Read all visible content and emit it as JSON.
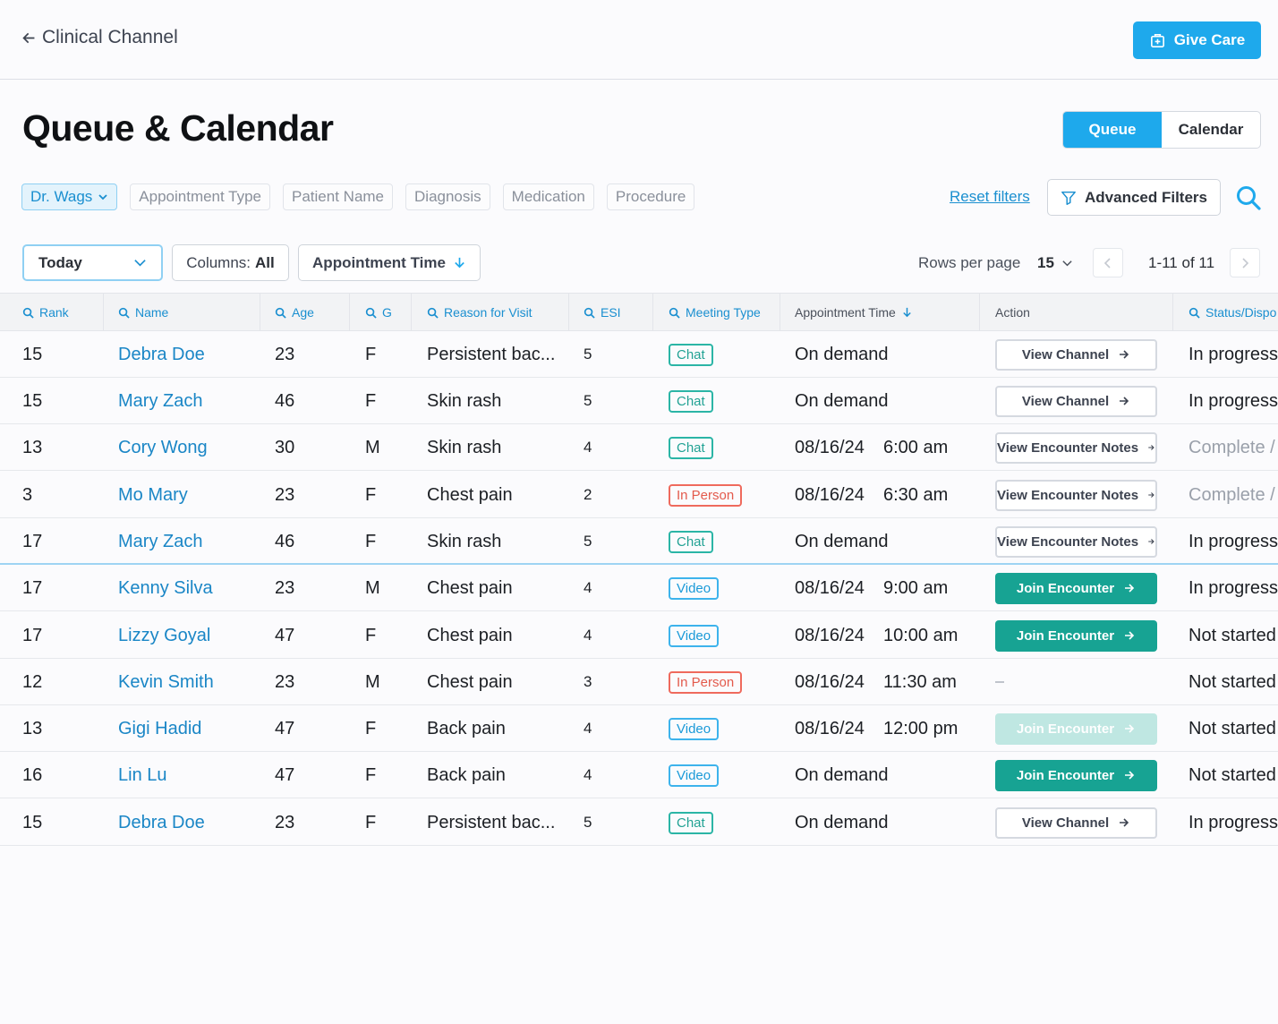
{
  "header": {
    "back_label": "Clinical Channel",
    "give_care_label": "Give Care"
  },
  "page": {
    "title": "Queue & Calendar",
    "view_toggle": [
      "Queue",
      "Calendar"
    ],
    "active_view": "Queue"
  },
  "filters": {
    "chips": [
      "Dr. Wags",
      "Appointment Type",
      "Patient Name",
      "Diagnosis",
      "Medication",
      "Procedure"
    ],
    "reset_label": "Reset filters",
    "advanced_label": "Advanced Filters"
  },
  "controls": {
    "date_range": "Today",
    "columns_label": "Columns:",
    "columns_value": "All",
    "sort_label": "Appointment Time",
    "rows_per_page_label": "Rows per page",
    "rows_per_page_value": "15",
    "range": "1-11 of 11"
  },
  "table": {
    "headers": [
      "Rank",
      "Name",
      "Age",
      "G",
      "Reason for Visit",
      "ESI",
      "Meeting Type",
      "Appointment Time",
      "Action",
      "Status/Dispo"
    ],
    "rows": [
      {
        "rank": "15",
        "name": "Debra Doe",
        "age": "23",
        "g": "F",
        "reason": "Persistent bac...",
        "esi": "5",
        "meeting": "Chat",
        "date": "On demand",
        "time": "",
        "action": "View Channel",
        "action_style": "outline",
        "status": "In progress"
      },
      {
        "rank": "15",
        "name": "Mary Zach",
        "age": "46",
        "g": "F",
        "reason": "Skin rash",
        "esi": "5",
        "meeting": "Chat",
        "date": "On demand",
        "time": "",
        "action": "View Channel",
        "action_style": "outline",
        "status": "In progress"
      },
      {
        "rank": "13",
        "name": "Cory Wong",
        "age": "30",
        "g": "M",
        "reason": "Skin rash",
        "esi": "4",
        "meeting": "Chat",
        "date": "08/16/24",
        "time": "6:00 am",
        "action": "View Encounter Notes",
        "action_style": "outline",
        "status": "Complete /"
      },
      {
        "rank": "3",
        "name": "Mo Mary",
        "age": "23",
        "g": "F",
        "reason": "Chest pain",
        "esi": "2",
        "meeting": "In Person",
        "date": "08/16/24",
        "time": "6:30 am",
        "action": "View Encounter Notes",
        "action_style": "outline",
        "status": "Complete /"
      },
      {
        "rank": "17",
        "name": "Mary Zach",
        "age": "46",
        "g": "F",
        "reason": "Skin rash",
        "esi": "5",
        "meeting": "Chat",
        "date": "On demand",
        "time": "",
        "action": "View Encounter Notes",
        "action_style": "outline",
        "status": "In progress"
      },
      {
        "rank": "17",
        "name": "Kenny Silva",
        "age": "23",
        "g": "M",
        "reason": "Chest pain",
        "esi": "4",
        "meeting": "Video",
        "date": "08/16/24",
        "time": "9:00 am",
        "action": "Join Encounter",
        "action_style": "green",
        "status": "In progress"
      },
      {
        "rank": "17",
        "name": "Lizzy Goyal",
        "age": "47",
        "g": "F",
        "reason": "Chest pain",
        "esi": "4",
        "meeting": "Video",
        "date": "08/16/24",
        "time": "10:00 am",
        "action": "Join Encounter",
        "action_style": "green",
        "status": "Not started"
      },
      {
        "rank": "12",
        "name": "Kevin Smith",
        "age": "23",
        "g": "M",
        "reason": "Chest pain",
        "esi": "3",
        "meeting": "In Person",
        "date": "08/16/24",
        "time": "11:30 am",
        "action": "",
        "action_style": "none",
        "status": "Not started"
      },
      {
        "rank": "13",
        "name": "Gigi Hadid",
        "age": "47",
        "g": "F",
        "reason": "Back pain",
        "esi": "4",
        "meeting": "Video",
        "date": "08/16/24",
        "time": "12:00 pm",
        "action": "Join Encounter",
        "action_style": "disabled",
        "status": "Not started"
      },
      {
        "rank": "16",
        "name": "Lin Lu",
        "age": "47",
        "g": "F",
        "reason": "Back pain",
        "esi": "4",
        "meeting": "Video",
        "date": "On demand",
        "time": "",
        "action": "Join Encounter",
        "action_style": "green",
        "status": "Not started"
      },
      {
        "rank": "15",
        "name": "Debra Doe",
        "age": "23",
        "g": "F",
        "reason": "Persistent bac...",
        "esi": "5",
        "meeting": "Chat",
        "date": "On demand",
        "time": "",
        "action": "View Channel",
        "action_style": "outline",
        "status": "In progress"
      }
    ]
  },
  "colors": {
    "accent": "#1ea9ec",
    "link": "#1a86c6",
    "chat": "#22a294",
    "video": "#1a9ad8",
    "in_person": "#e35a4c",
    "join_button": "#17a393"
  },
  "icons": [
    "arrow-left-icon",
    "building-icon",
    "chevron-down-icon",
    "filter-icon",
    "search-icon",
    "arrow-down-icon",
    "chevron-left-icon",
    "chevron-right-icon",
    "arrow-right-icon"
  ]
}
